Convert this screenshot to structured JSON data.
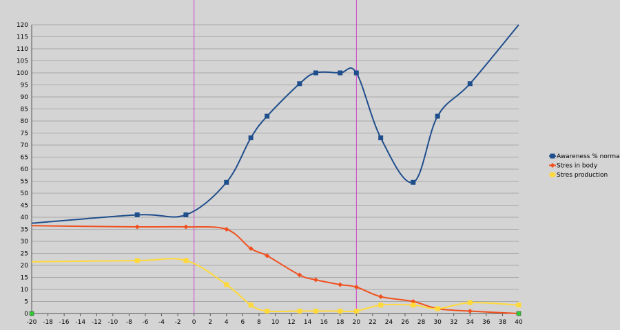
{
  "chart_data": {
    "type": "line",
    "xlim": [
      -20,
      40
    ],
    "ylim": [
      0,
      120
    ],
    "x_ticks": [
      -20,
      -18,
      -16,
      -14,
      -12,
      -10,
      -8,
      -6,
      -4,
      -2,
      0,
      2,
      4,
      6,
      8,
      10,
      12,
      14,
      16,
      18,
      20,
      22,
      24,
      26,
      28,
      30,
      32,
      34,
      36,
      38,
      40
    ],
    "y_ticks": [
      0,
      5,
      10,
      15,
      20,
      25,
      30,
      35,
      40,
      45,
      50,
      55,
      60,
      65,
      70,
      75,
      80,
      85,
      90,
      95,
      100,
      105,
      110,
      115,
      120
    ],
    "grid": true,
    "legend_position": "right",
    "vertical_lines": [
      0,
      20
    ],
    "vertical_line_color": "#cc44cc",
    "series": [
      {
        "name": "Awareness % normal",
        "color": "#1f4e8c",
        "marker": "square",
        "points": [
          [
            -20,
            37.5
          ],
          [
            -7,
            41
          ],
          [
            -1,
            41
          ],
          [
            4,
            54.5
          ],
          [
            7,
            73
          ],
          [
            9,
            82
          ],
          [
            13,
            95.5
          ],
          [
            15,
            100
          ],
          [
            18,
            100
          ],
          [
            20,
            100
          ],
          [
            23,
            73
          ],
          [
            27,
            54.5
          ],
          [
            30,
            82
          ],
          [
            34,
            95.5
          ],
          [
            40,
            120
          ]
        ],
        "marked": [
          false,
          true,
          true,
          true,
          true,
          true,
          true,
          true,
          true,
          true,
          true,
          true,
          true,
          true,
          false
        ]
      },
      {
        "name": "Stres in body",
        "color": "#f0501e",
        "marker": "diamond",
        "points": [
          [
            -20,
            36.5
          ],
          [
            -7,
            36
          ],
          [
            -1,
            36
          ],
          [
            4,
            35
          ],
          [
            7,
            27
          ],
          [
            9,
            24
          ],
          [
            13,
            16
          ],
          [
            15,
            14
          ],
          [
            18,
            12
          ],
          [
            20,
            11
          ],
          [
            23,
            7
          ],
          [
            27,
            5
          ],
          [
            30,
            2
          ],
          [
            34,
            1
          ],
          [
            40,
            0
          ]
        ],
        "marked": [
          false,
          true,
          true,
          true,
          true,
          true,
          true,
          true,
          true,
          true,
          true,
          true,
          true,
          true,
          false
        ]
      },
      {
        "name": "Stres production",
        "color": "#ffd93a",
        "marker": "square",
        "points": [
          [
            -20,
            21.5
          ],
          [
            -7,
            22
          ],
          [
            -1,
            22
          ],
          [
            4,
            12
          ],
          [
            7,
            3.5
          ],
          [
            9,
            1
          ],
          [
            13,
            1
          ],
          [
            15,
            1
          ],
          [
            18,
            1
          ],
          [
            20,
            1
          ],
          [
            23,
            3.5
          ],
          [
            27,
            3.5
          ],
          [
            30,
            2
          ],
          [
            34,
            4.5
          ],
          [
            40,
            3.5
          ]
        ],
        "marked": [
          false,
          true,
          true,
          true,
          true,
          true,
          true,
          true,
          true,
          true,
          true,
          true,
          true,
          true,
          true
        ]
      }
    ],
    "endpoint_markers": [
      [
        -20,
        0
      ],
      [
        40,
        0
      ]
    ],
    "endpoint_marker_color": "#33cc33"
  }
}
